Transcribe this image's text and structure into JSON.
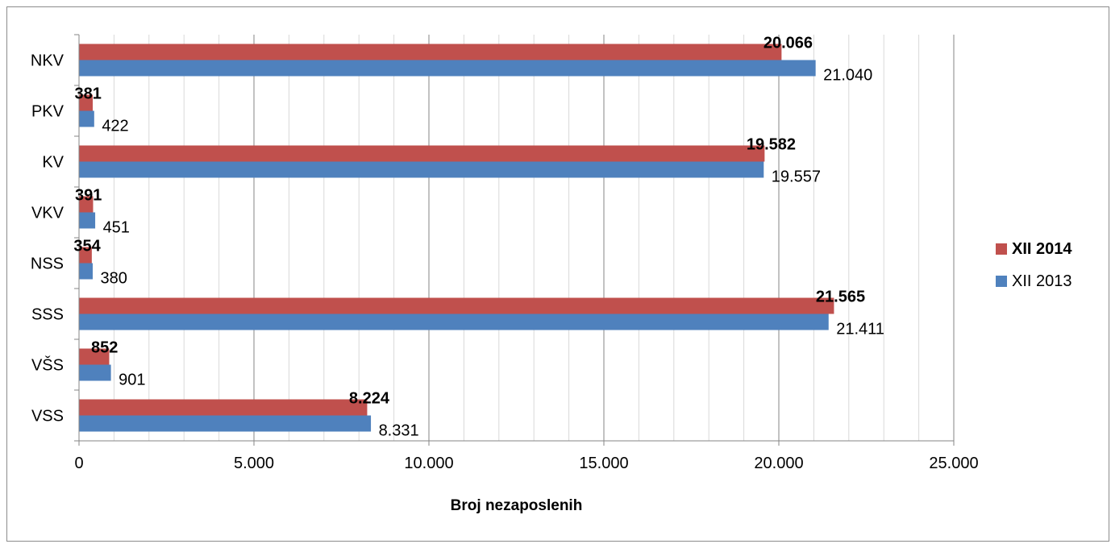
{
  "chart_data": {
    "type": "bar",
    "orientation": "horizontal",
    "categories": [
      "NKV",
      "PKV",
      "KV",
      "VKV",
      "NSS",
      "SSS",
      "VŠS",
      "VSS"
    ],
    "series": [
      {
        "name": "XII 2014",
        "color": "#c0504d",
        "values": [
          20066,
          381,
          19582,
          391,
          354,
          21565,
          852,
          8224
        ],
        "labels": [
          "20.066",
          "381",
          "19.582",
          "391",
          "354",
          "21.565",
          "852",
          "8.224"
        ]
      },
      {
        "name": "XII 2013",
        "color": "#4f81bd",
        "values": [
          21040,
          422,
          19557,
          451,
          380,
          21411,
          901,
          8331
        ],
        "labels": [
          "21.040",
          "422",
          "19.557",
          "451",
          "380",
          "21.411",
          "901",
          "8.331"
        ]
      }
    ],
    "xlim": [
      0,
      25000
    ],
    "x_ticks": [
      0,
      5000,
      10000,
      15000,
      20000,
      25000
    ],
    "x_tick_labels": [
      "0",
      "5.000",
      "10.000",
      "15.000",
      "20.000",
      "25.000"
    ],
    "xlabel": "Broj nezaposlenih",
    "ylabel": "",
    "title": "",
    "grid": "major and minor vertical gridlines",
    "legend_position": "right"
  }
}
